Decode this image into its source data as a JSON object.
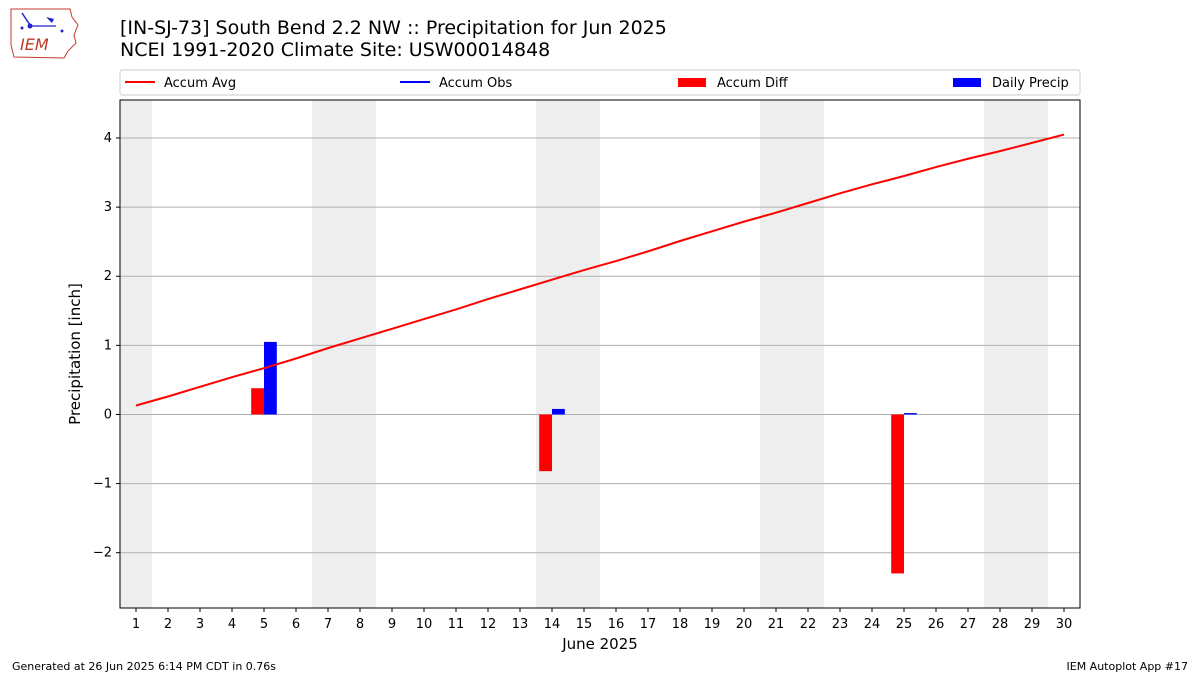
{
  "title_line1": "[IN-SJ-73] South Bend 2.2 NW :: Precipitation for Jun 2025",
  "title_line2": "NCEI 1991-2020 Climate Site: USW00014848",
  "logo_text": "IEM",
  "footer_left": "Generated at 26 Jun 2025 6:14 PM CDT in 0.76s",
  "footer_right": "IEM Autoplot App #17",
  "colors": {
    "avg": "#ff0000",
    "obs": "#0000ff",
    "diff": "#ff0000",
    "daily": "#0000ff",
    "weekend": "#eeeeee",
    "grid": "#b0b0b0"
  },
  "chart_data": {
    "type": "bar",
    "xlabel": "June 2025",
    "ylabel": "Precipitation [inch]",
    "x": [
      1,
      2,
      3,
      4,
      5,
      6,
      7,
      8,
      9,
      10,
      11,
      12,
      13,
      14,
      15,
      16,
      17,
      18,
      19,
      20,
      21,
      22,
      23,
      24,
      25,
      26,
      27,
      28,
      29,
      30
    ],
    "xlim": [
      0.5,
      30.5
    ],
    "ylim": [
      -2.8,
      4.55
    ],
    "yticks": [
      -2,
      -1,
      0,
      1,
      2,
      3,
      4
    ],
    "ytick_labels": [
      "−2",
      "−1",
      "0",
      "1",
      "2",
      "3",
      "4"
    ],
    "grid": "horizontal",
    "legend_placement": "top",
    "legend": [
      {
        "label": "Accum Avg",
        "kind": "line",
        "color": "#ff0000"
      },
      {
        "label": "Accum Obs",
        "kind": "line",
        "color": "#0000ff"
      },
      {
        "label": "Accum Diff",
        "kind": "bar",
        "color": "#ff0000"
      },
      {
        "label": "Daily Precip",
        "kind": "bar",
        "color": "#0000ff"
      }
    ],
    "weekend_spans": [
      [
        0.5,
        1.5
      ],
      [
        6.5,
        8.5
      ],
      [
        13.5,
        15.5
      ],
      [
        20.5,
        22.5
      ],
      [
        27.5,
        29.5
      ]
    ],
    "series": [
      {
        "name": "Accum Avg",
        "type": "line",
        "x": [
          1,
          2,
          3,
          4,
          5,
          6,
          7,
          8,
          9,
          10,
          11,
          12,
          13,
          14,
          15,
          16,
          17,
          18,
          19,
          20,
          21,
          22,
          23,
          24,
          25,
          26,
          27,
          28,
          29,
          30
        ],
        "values": [
          0.13,
          0.26,
          0.4,
          0.54,
          0.67,
          0.81,
          0.96,
          1.1,
          1.24,
          1.38,
          1.52,
          1.67,
          1.81,
          1.95,
          2.09,
          2.22,
          2.36,
          2.51,
          2.65,
          2.79,
          2.92,
          3.06,
          3.2,
          3.33,
          3.45,
          3.58,
          3.7,
          3.81,
          3.93,
          4.05
        ]
      },
      {
        "name": "Accum Diff",
        "type": "bar",
        "x": [
          5,
          14,
          25
        ],
        "values": [
          0.38,
          -0.82,
          -2.3
        ]
      },
      {
        "name": "Daily Precip",
        "type": "bar",
        "x": [
          5,
          14,
          25
        ],
        "values": [
          1.05,
          0.08,
          0.02
        ]
      }
    ]
  }
}
